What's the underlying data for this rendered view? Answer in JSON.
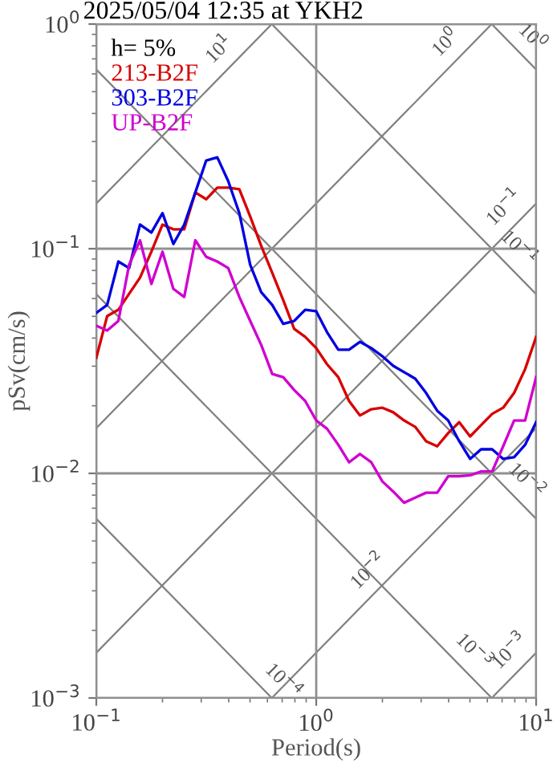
{
  "chart_data": {
    "type": "line",
    "title": "2025/05/04 12:35 at YKH2",
    "xlabel": "Period(s)",
    "ylabel": "pSv(cm/s)",
    "legend_title": "h= 5%",
    "log": "xy",
    "xlim": [
      0.1,
      10
    ],
    "ylim": [
      0.001,
      1
    ],
    "grid": true,
    "legend": "top left",
    "marker": "none",
    "line_style": "solid",
    "xticks": [
      {
        "value": 0.1,
        "label": "10$^{−1}$"
      },
      {
        "value": 1,
        "label": "10$^{0}$"
      },
      {
        "value": 10,
        "label": "10$^{1}$"
      }
    ],
    "yticks": [
      {
        "value": 0.001,
        "label": "10$^{−3}$"
      },
      {
        "value": 0.01,
        "label": "10$^{−2}$"
      },
      {
        "value": 0.1,
        "label": "10$^{−1}$"
      },
      {
        "value": 1,
        "label": "10$^{0}$"
      }
    ],
    "x": [
      0.1,
      0.112,
      0.126,
      0.141,
      0.158,
      0.178,
      0.2,
      0.224,
      0.251,
      0.282,
      0.316,
      0.355,
      0.398,
      0.447,
      0.501,
      0.562,
      0.631,
      0.708,
      0.794,
      0.891,
      1,
      1.12,
      1.26,
      1.41,
      1.58,
      1.78,
      2,
      2.24,
      2.51,
      2.82,
      3.16,
      3.55,
      3.98,
      4.47,
      5.01,
      5.62,
      6.31,
      7.08,
      7.94,
      8.91,
      10
    ],
    "series": [
      {
        "color": "#808080",
        "x": [
          0.1,
          0.628
        ],
        "values": [
          0.159,
          1
        ]
      },
      {
        "color": "#808080",
        "x": [
          0.1,
          6.28
        ],
        "values": [
          0.0159,
          1
        ]
      },
      {
        "color": "#808080",
        "x": [
          0.1,
          10
        ],
        "values": [
          0.00159,
          0.159
        ]
      },
      {
        "color": "#808080",
        "x": [
          0.628,
          10
        ],
        "values": [
          0.001,
          0.0159
        ]
      },
      {
        "color": "#808080",
        "x": [
          6.28,
          10
        ],
        "values": [
          0.001,
          0.00159
        ]
      },
      {
        "color": "#808080",
        "x": [
          6.28,
          10
        ],
        "values": [
          1,
          0.628
        ]
      },
      {
        "color": "#808080",
        "x": [
          0.628,
          10
        ],
        "values": [
          1,
          0.0628
        ]
      },
      {
        "color": "#808080",
        "x": [
          0.1,
          10
        ],
        "values": [
          0.628,
          0.00628
        ]
      },
      {
        "color": "#808080",
        "x": [
          0.1,
          6.28
        ],
        "values": [
          0.0628,
          0.001
        ]
      },
      {
        "color": "#808080",
        "x": [
          0.1,
          0.628
        ],
        "values": [
          0.00628,
          0.001
        ]
      },
      {
        "name": "213-B2F",
        "color": "#d80000",
        "values": [
          0.0327,
          0.0501,
          0.0535,
          0.063,
          0.0743,
          0.097,
          0.128,
          0.122,
          0.122,
          0.178,
          0.166,
          0.187,
          0.187,
          0.184,
          0.139,
          0.103,
          0.078,
          0.059,
          0.044,
          0.0405,
          0.0361,
          0.0306,
          0.0268,
          0.021,
          0.0181,
          0.0193,
          0.0196,
          0.0187,
          0.0172,
          0.0161,
          0.0139,
          0.0132,
          0.0151,
          0.0169,
          0.0146,
          0.0164,
          0.0184,
          0.0196,
          0.0228,
          0.0291,
          0.0405
        ]
      },
      {
        "name": "303-B2F",
        "color": "#0000e0",
        "values": [
          0.0518,
          0.0562,
          0.0877,
          0.082,
          0.128,
          0.118,
          0.144,
          0.105,
          0.128,
          0.178,
          0.247,
          0.255,
          0.2,
          0.144,
          0.0848,
          0.0641,
          0.0562,
          0.0463,
          0.0477,
          0.0535,
          0.0527,
          0.0425,
          0.0355,
          0.0355,
          0.0385,
          0.0361,
          0.0332,
          0.0301,
          0.0282,
          0.0264,
          0.0228,
          0.019,
          0.0172,
          0.0139,
          0.0116,
          0.0128,
          0.0128,
          0.0116,
          0.0118,
          0.0134,
          0.0169
        ]
      },
      {
        "name": "UP-B2F",
        "color": "#d000d0",
        "values": [
          0.0454,
          0.0432,
          0.0477,
          0.0848,
          0.109,
          0.0697,
          0.097,
          0.0663,
          0.061,
          0.109,
          0.092,
          0.0877,
          0.082,
          0.061,
          0.0477,
          0.0373,
          0.0277,
          0.0268,
          0.0235,
          0.021,
          0.0172,
          0.0158,
          0.0134,
          0.0112,
          0.0122,
          0.0112,
          0.0092,
          0.0083,
          0.0074,
          0.0078,
          0.0082,
          0.0082,
          0.0097,
          0.0097,
          0.0098,
          0.0102,
          0.0102,
          0.0132,
          0.0172,
          0.0172,
          0.0268
        ]
      }
    ],
    "annotations": [
      {
        "text": "10$^{1}$",
        "x": 0.42,
        "y": 0.668
      },
      {
        "text": "10$^{0}$",
        "x": 8.3,
        "y": 0.757
      },
      {
        "text": "10$^{0}$",
        "x": 4.5,
        "y": 0.716
      },
      {
        "text": "10$^{−1}$",
        "x": 7.2,
        "y": 0.0872
      },
      {
        "text": "10$^{−1}$",
        "x": 8.3,
        "y": 0.132
      },
      {
        "text": "10$^{−2}$",
        "x": 7.8,
        "y": 0.00805
      },
      {
        "text": "10$^{−2}$",
        "x": 2,
        "y": 0.00318
      },
      {
        "text": "10$^{−3}$",
        "x": 4.5,
        "y": 0.0014
      },
      {
        "text": "10$^{−3}$",
        "x": 8.8,
        "y": 0.0014
      },
      {
        "text": "10$^{−4}$",
        "x": 0.61,
        "y": 0.00103
      }
    ]
  }
}
